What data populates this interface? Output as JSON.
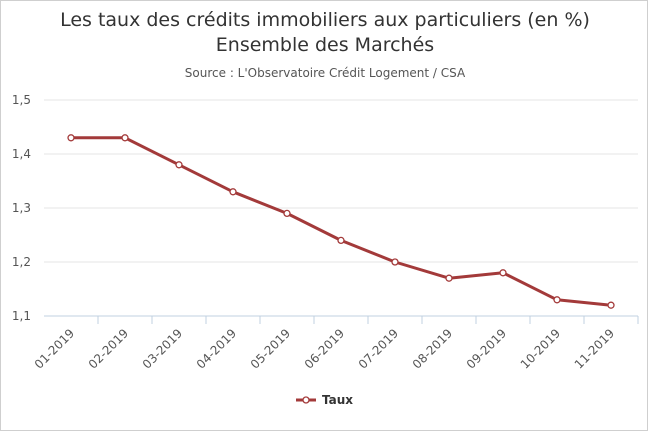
{
  "chart_data": {
    "type": "line",
    "title": "Les taux des crédits immobiliers aux particuliers (en %)",
    "title_line2": "Ensemble des Marchés",
    "subtitle": "Source : L'Observatoire Crédit Logement / CSA",
    "categories": [
      "01-2019",
      "02-2019",
      "03-2019",
      "04-2019",
      "05-2019",
      "06-2019",
      "07-2019",
      "08-2019",
      "09-2019",
      "10-2019",
      "11-2019"
    ],
    "series": [
      {
        "name": "Taux",
        "values": [
          1.43,
          1.43,
          1.38,
          1.33,
          1.29,
          1.24,
          1.2,
          1.17,
          1.18,
          1.13,
          1.12
        ],
        "color": "#a33a3a"
      }
    ],
    "y_ticks": [
      "1,1",
      "1,2",
      "1,3",
      "1,4",
      "1,5"
    ],
    "ylim": [
      1.1,
      1.5
    ],
    "grid": true,
    "legend_position": "bottom-center",
    "xlabel": "",
    "ylabel": ""
  }
}
